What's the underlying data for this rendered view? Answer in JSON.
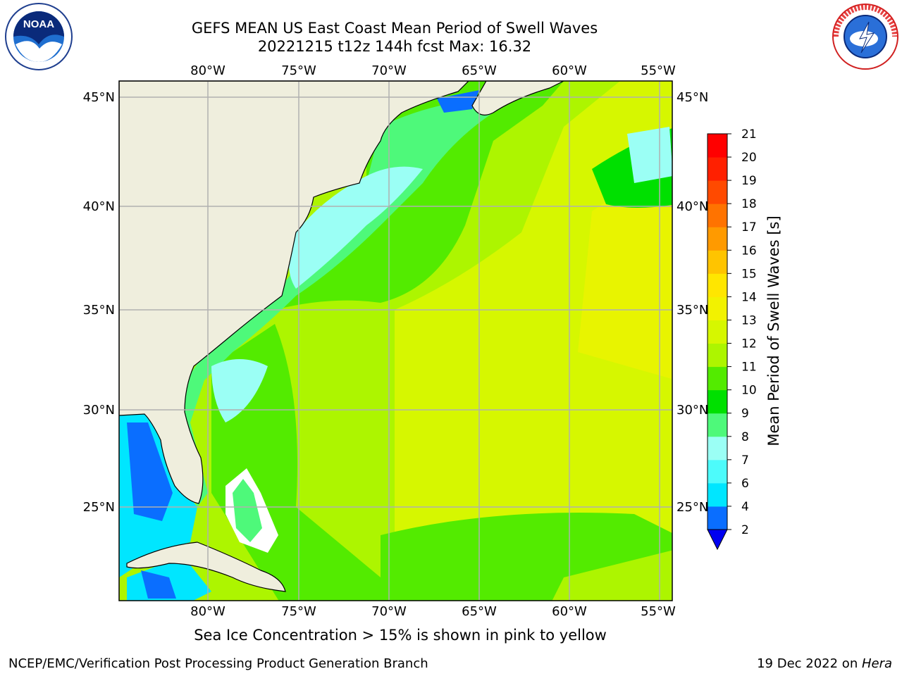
{
  "title": {
    "line1": "GEFS MEAN US East Coast Mean Period of Swell Waves",
    "line2": "20221215 t12z 144h fcst   Max: 16.32"
  },
  "logos": {
    "left": {
      "icon": "noaa-logo",
      "text": "NOAA"
    },
    "right": {
      "icon": "nws-logo",
      "text": "NATIONAL WEATHER SERVICE"
    }
  },
  "map": {
    "lon_labels": [
      "80°W",
      "75°W",
      "70°W",
      "65°W",
      "60°W",
      "55°W"
    ],
    "lat_labels": [
      "45°N",
      "40°N",
      "35°N",
      "30°N",
      "25°N"
    ],
    "land_color": "#efeedd",
    "grid_color": "#b0b0b0"
  },
  "colorbar": {
    "label": "Mean Period of Swell Waves [s]",
    "ticks": [
      "2",
      "4",
      "6",
      "7",
      "8",
      "9",
      "10",
      "11",
      "12",
      "13",
      "14",
      "15",
      "16",
      "17",
      "18",
      "19",
      "20",
      "21"
    ],
    "colors": [
      "#0a6eff",
      "#00e6ff",
      "#4dfbfb",
      "#9bfff5",
      "#4ef97a",
      "#00e000",
      "#53eb00",
      "#adf500",
      "#d6f700",
      "#f2f200",
      "#ffe600",
      "#ffc400",
      "#ff9a00",
      "#ff7300",
      "#ff4a00",
      "#ff2000",
      "#ff0000"
    ],
    "under_color": "#0000f0"
  },
  "caption": "Sea Ice Concentration > 15% is shown in pink to yellow",
  "footer": {
    "left": "NCEP/EMC/Verification Post Processing Product Generation Branch",
    "right_date": "19 Dec 2022 on ",
    "right_host": "Hera"
  }
}
